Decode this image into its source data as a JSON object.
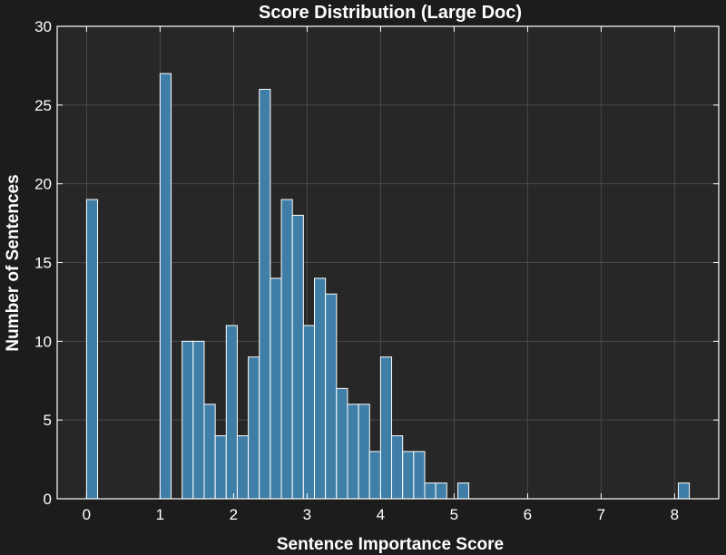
{
  "chart_data": {
    "type": "bar",
    "title": "Score Distribution (Large Doc)",
    "xlabel": "Sentence Importance Score",
    "ylabel": "Number of Sentences",
    "xlim": [
      -0.4,
      8.6
    ],
    "ylim": [
      0,
      30
    ],
    "xticks": [
      0,
      1,
      2,
      3,
      4,
      5,
      6,
      7,
      8
    ],
    "yticks": [
      0,
      5,
      10,
      15,
      20,
      25,
      30
    ],
    "bin_width": 0.15,
    "bins": [
      {
        "x": 0.0,
        "count": 19
      },
      {
        "x": 1.0,
        "count": 27
      },
      {
        "x": 1.3,
        "count": 10
      },
      {
        "x": 1.45,
        "count": 10
      },
      {
        "x": 1.6,
        "count": 6
      },
      {
        "x": 1.75,
        "count": 4
      },
      {
        "x": 1.9,
        "count": 11
      },
      {
        "x": 2.05,
        "count": 4
      },
      {
        "x": 2.2,
        "count": 9
      },
      {
        "x": 2.35,
        "count": 26
      },
      {
        "x": 2.5,
        "count": 14
      },
      {
        "x": 2.65,
        "count": 19
      },
      {
        "x": 2.8,
        "count": 18
      },
      {
        "x": 2.95,
        "count": 11
      },
      {
        "x": 3.1,
        "count": 14
      },
      {
        "x": 3.25,
        "count": 13
      },
      {
        "x": 3.4,
        "count": 7
      },
      {
        "x": 3.55,
        "count": 6
      },
      {
        "x": 3.7,
        "count": 6
      },
      {
        "x": 3.85,
        "count": 3
      },
      {
        "x": 4.0,
        "count": 9
      },
      {
        "x": 4.15,
        "count": 4
      },
      {
        "x": 4.3,
        "count": 3
      },
      {
        "x": 4.45,
        "count": 3
      },
      {
        "x": 4.6,
        "count": 1
      },
      {
        "x": 4.75,
        "count": 1
      },
      {
        "x": 5.05,
        "count": 1
      },
      {
        "x": 8.05,
        "count": 1
      }
    ],
    "grid": true,
    "colors": {
      "background": "#1c1c1c",
      "plot_area": "#272727",
      "bar_fill": "#3f7ea6",
      "bar_edge": "#ffffff",
      "grid": "#4a4a4a",
      "text": "#ffffff"
    }
  }
}
